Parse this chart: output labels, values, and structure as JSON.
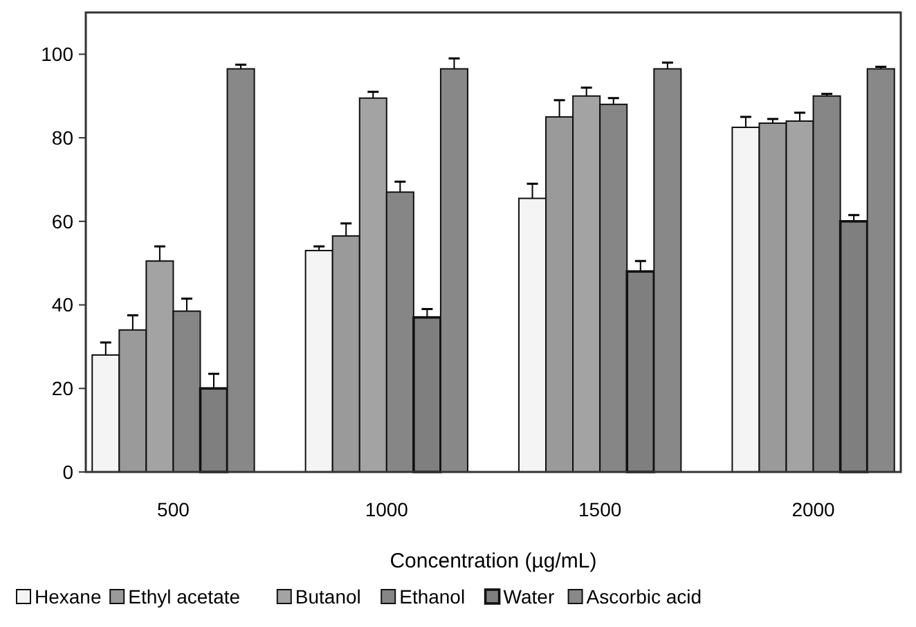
{
  "chart_data": {
    "type": "bar",
    "xlabel": "Concentration (µg/mL)",
    "categories": [
      "500",
      "1000",
      "1500",
      "2000"
    ],
    "ylim": [
      0,
      110
    ],
    "yticks": [
      0,
      20,
      40,
      60,
      80,
      100
    ],
    "grid": false,
    "legend": "bottom",
    "series": [
      {
        "name": "Hexane",
        "color": "#f4f4f4",
        "values": [
          28,
          53,
          65.5,
          82.5
        ],
        "errors": [
          3,
          1,
          3.5,
          2.5
        ]
      },
      {
        "name": "Ethyl acetate",
        "color": "#9a9a9a",
        "values": [
          34,
          56.5,
          85,
          83.5
        ],
        "errors": [
          3.5,
          3,
          4,
          1
        ]
      },
      {
        "name": "Butanol",
        "color": "#a3a3a3",
        "values": [
          50.5,
          89.5,
          90,
          84
        ],
        "errors": [
          3.5,
          1.5,
          2,
          2
        ]
      },
      {
        "name": "Ethanol",
        "color": "#868686",
        "values": [
          38.5,
          67,
          88,
          90
        ],
        "errors": [
          3,
          2.5,
          1.5,
          0.5
        ]
      },
      {
        "name": "Water",
        "color": "#7f7f7f",
        "values": [
          20,
          37,
          48,
          60
        ],
        "errors": [
          3.5,
          2,
          2.5,
          1.5
        ]
      },
      {
        "name": "Ascorbic acid",
        "color": "#888888",
        "values": [
          96.5,
          96.5,
          96.5,
          96.5
        ],
        "errors": [
          1,
          2.5,
          1.5,
          0.5
        ]
      }
    ]
  }
}
